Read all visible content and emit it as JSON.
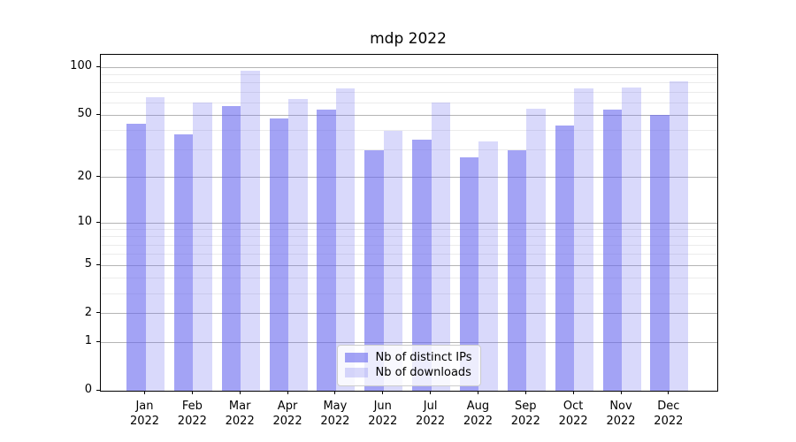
{
  "chart_data": {
    "type": "bar",
    "title": "mdp 2022",
    "categories": [
      "Jan",
      "Feb",
      "Mar",
      "Apr",
      "May",
      "Jun",
      "Jul",
      "Aug",
      "Sep",
      "Oct",
      "Nov",
      "Dec"
    ],
    "category_sub_label": "2022",
    "series": [
      {
        "name": "Nb of distinct IPs",
        "color": "#6666ee",
        "opacity": 0.6,
        "values": [
          44,
          38,
          57,
          48,
          54,
          30,
          35,
          27,
          30,
          43,
          54,
          50
        ]
      },
      {
        "name": "Nb of downloads",
        "color": "#6666ee",
        "opacity": 0.25,
        "values": [
          65,
          60,
          96,
          63,
          74,
          40,
          60,
          34,
          55,
          74,
          75,
          82
        ]
      }
    ],
    "yscale": "log1p",
    "ylim": [
      0,
      120
    ],
    "y_ticks": {
      "values": [
        0,
        1,
        2,
        5,
        10,
        20,
        50,
        100
      ],
      "labels": [
        "0",
        "1",
        "2",
        "5",
        "10",
        "20",
        "50",
        "100"
      ]
    },
    "y_minor_ticks": [
      3,
      4,
      6,
      7,
      8,
      9,
      30,
      40,
      60,
      70,
      80,
      90
    ],
    "grid": true,
    "legend_position": "lower center",
    "colors": {
      "background": "#ffffff",
      "spine": "#000000",
      "grid_major": "#b4b4b4",
      "grid_minor": "#ebebeb",
      "text": "#000000"
    }
  }
}
